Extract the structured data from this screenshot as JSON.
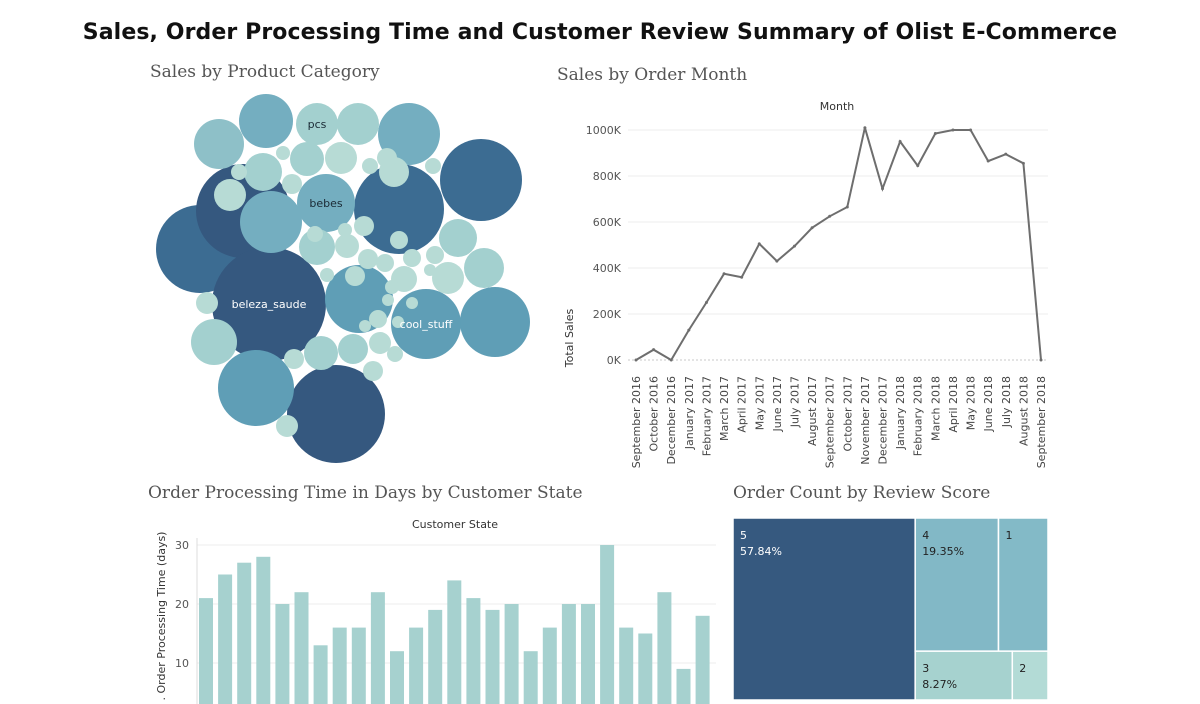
{
  "dashboard": {
    "title": "Sales, Order Processing Time and Customer Review Summary of Olist E-Commerce"
  },
  "chart_data": [
    {
      "type": "bubble",
      "title": "Sales by Product Category",
      "labeled_bubbles": [
        "pcs",
        "bebes",
        "beleza_saude",
        "cool_stuff"
      ]
    },
    {
      "type": "line",
      "title": "Sales by Order Month",
      "header": "Month",
      "ylabel": "Total Sales",
      "ylim": [
        0,
        1000000
      ],
      "yticks": [
        "0K",
        "200K",
        "400K",
        "600K",
        "800K",
        "1000K"
      ],
      "grid": true,
      "x": [
        "September 2016",
        "October 2016",
        "December 2016",
        "January 2017",
        "February 2017",
        "March 2017",
        "April 2017",
        "May 2017",
        "June 2017",
        "July 2017",
        "August 2017",
        "September 2017",
        "October 2017",
        "November 2017",
        "December 2017",
        "January 2018",
        "February 2018",
        "March 2018",
        "April 2018",
        "May 2018",
        "June 2018",
        "July 2018",
        "August 2018",
        "September 2018"
      ],
      "series": [
        {
          "values": [
            0,
            45000,
            0,
            130000,
            250000,
            375000,
            360000,
            505000,
            430000,
            495000,
            575000,
            625000,
            665000,
            1010000,
            745000,
            950000,
            845000,
            985000,
            1000000,
            1000000,
            865000,
            895000,
            855000,
            0
          ]
        }
      ]
    },
    {
      "type": "bar",
      "title": "Order Processing Time in Days by Customer State",
      "header": "Customer State",
      "ylabel": ". Order Processing Time (days)",
      "yticks": [
        "10",
        "20",
        "30"
      ],
      "grid": true,
      "values": [
        21,
        25,
        27,
        28,
        20,
        22,
        13,
        16,
        16,
        22,
        12,
        16,
        19,
        24,
        21,
        19,
        20,
        12,
        16,
        20,
        20,
        30,
        16,
        15,
        22,
        9,
        18
      ]
    },
    {
      "type": "treemap",
      "title": "Order Count by Review Score",
      "items": [
        {
          "label": "5",
          "pct": "57.84%",
          "value": 57.84
        },
        {
          "label": "4",
          "pct": "19.35%",
          "value": 19.35
        },
        {
          "label": "1",
          "pct": "",
          "value": 11.5
        },
        {
          "label": "3",
          "pct": "8.27%",
          "value": 8.27
        },
        {
          "label": "2",
          "pct": "",
          "value": 3.04
        }
      ]
    }
  ]
}
